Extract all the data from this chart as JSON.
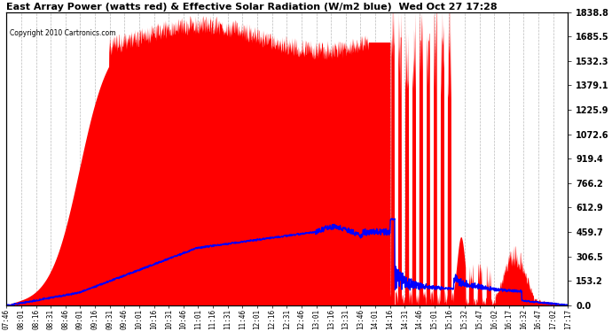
{
  "title": "East Array Power (watts red) & Effective Solar Radiation (W/m2 blue)  Wed Oct 27 17:28",
  "copyright": "Copyright 2010 Cartronics.com",
  "bg_color": "#ffffff",
  "plot_bg_color": "#ffffff",
  "grid_color": "#aaaaaa",
  "red_color": "#ff0000",
  "blue_color": "#0000ff",
  "title_color": "#000000",
  "yticks": [
    0.0,
    153.2,
    306.5,
    459.7,
    612.9,
    766.2,
    919.4,
    1072.6,
    1225.9,
    1379.1,
    1532.3,
    1685.5,
    1838.8
  ],
  "ymax": 1838.8,
  "xtick_labels": [
    "07:46",
    "08:01",
    "08:16",
    "08:31",
    "08:46",
    "09:01",
    "09:16",
    "09:31",
    "09:46",
    "10:01",
    "10:16",
    "10:31",
    "10:46",
    "11:01",
    "11:16",
    "11:31",
    "11:46",
    "12:01",
    "12:16",
    "12:31",
    "12:46",
    "13:01",
    "13:16",
    "13:31",
    "13:46",
    "14:01",
    "14:16",
    "14:31",
    "14:46",
    "15:01",
    "15:16",
    "15:32",
    "15:47",
    "16:02",
    "16:17",
    "16:32",
    "16:47",
    "17:02",
    "17:17"
  ]
}
